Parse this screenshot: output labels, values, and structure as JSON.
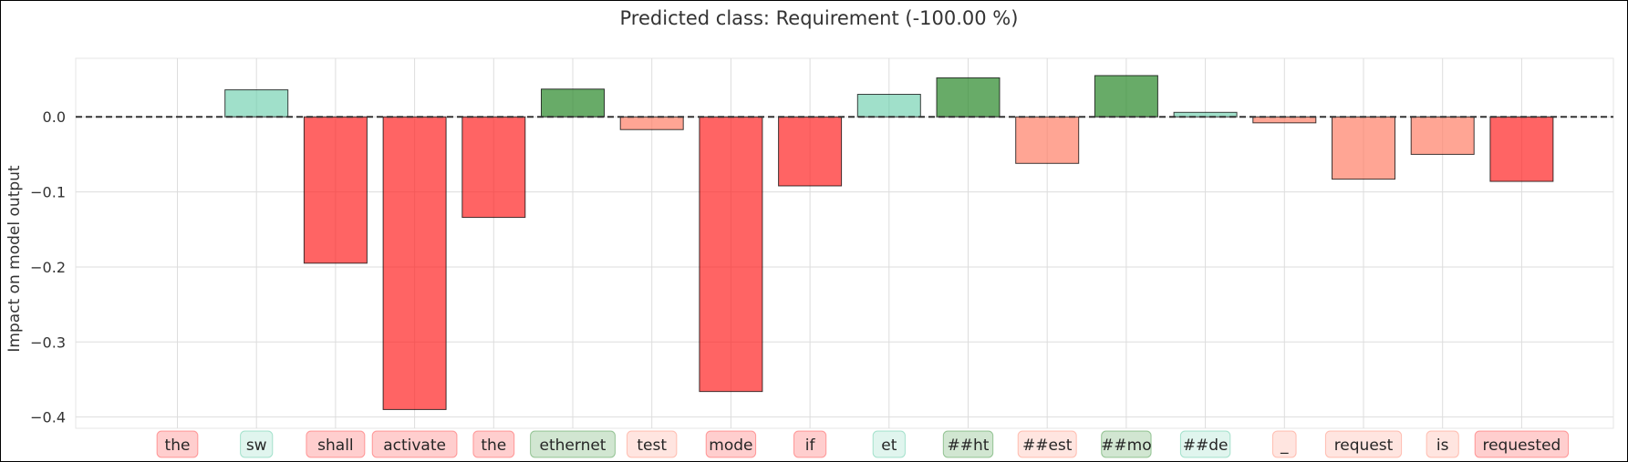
{
  "chart_data": {
    "type": "bar",
    "title": "Predicted class: Requirement (-100.00 %)",
    "xlabel": "",
    "ylabel": "Impact on model output",
    "ylim": [
      -0.415,
      0.078
    ],
    "yticks": [
      0.0,
      -0.1,
      -0.2,
      -0.3,
      -0.4
    ],
    "ytick_labels": [
      "0.0",
      "−0.1",
      "−0.2",
      "−0.3",
      "−0.4"
    ],
    "grid": true,
    "baseline": 0.0,
    "categories": [
      "the",
      "sw",
      "shall",
      "activate",
      "the",
      "ethernet",
      "test",
      "mode",
      "if",
      "et",
      "##ht",
      "##est",
      "##mo",
      "##de",
      "_",
      "request",
      "is",
      "requested"
    ],
    "values": [
      0.0,
      0.036,
      -0.195,
      -0.39,
      -0.134,
      0.037,
      -0.017,
      -0.366,
      -0.092,
      0.03,
      0.052,
      -0.062,
      0.055,
      0.006,
      -0.008,
      -0.083,
      -0.05,
      -0.086
    ],
    "colors": {
      "strong_positive": "#2e8b2e",
      "weak_positive": "#66cdaa",
      "strong_negative": "#ff2222",
      "weak_negative": "#ff7f66",
      "bar_edge": "#000000",
      "grid": "#dddddd",
      "baseline": "#333333"
    },
    "bar_styles": [
      "strong_negative",
      "weak_positive",
      "strong_negative",
      "strong_negative",
      "strong_negative",
      "strong_positive",
      "weak_negative",
      "strong_negative",
      "strong_negative",
      "weak_positive",
      "strong_positive",
      "weak_negative",
      "strong_positive",
      "weak_positive",
      "weak_negative",
      "weak_negative",
      "weak_negative",
      "strong_negative"
    ]
  }
}
